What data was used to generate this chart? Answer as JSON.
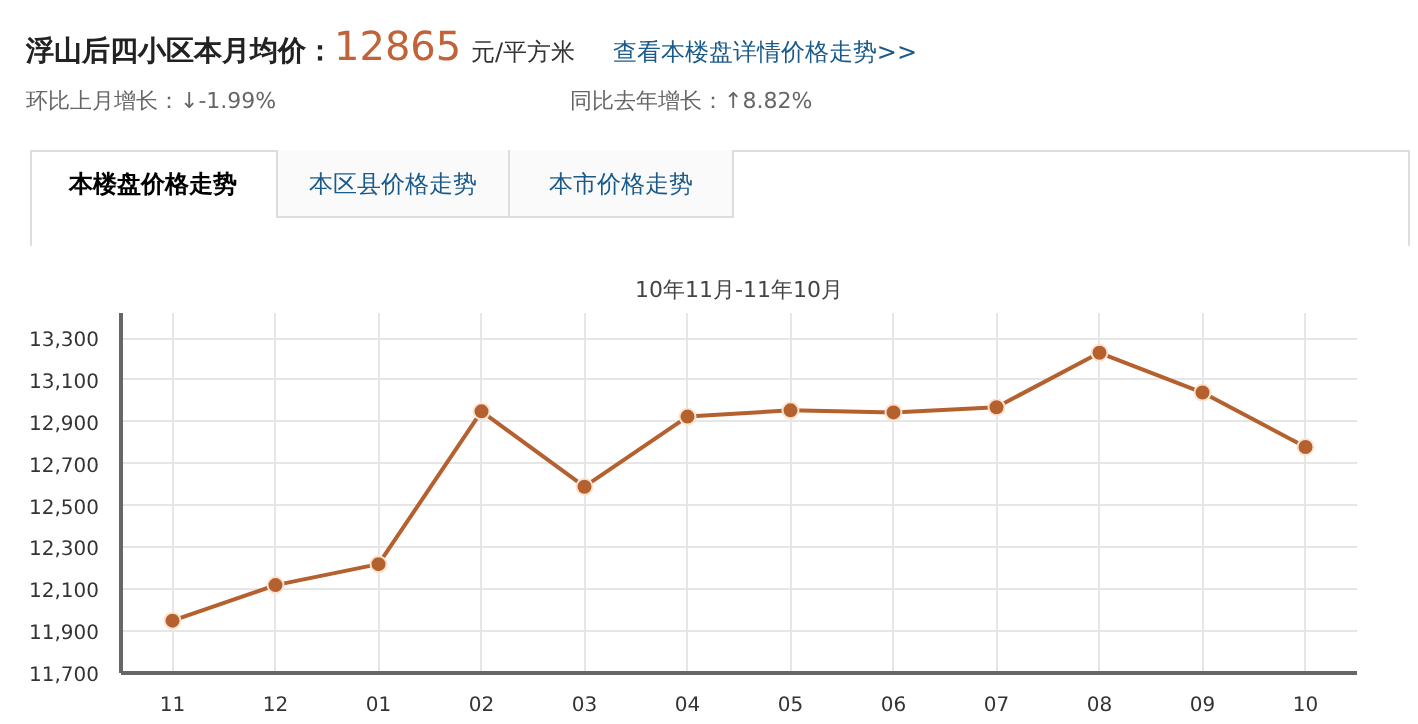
{
  "chart_data": {
    "type": "line",
    "title": "10年11月-11年10月",
    "annotations": [
      "浮山后四小区本月均价：",
      "12865",
      "元/平方米",
      "查看本楼盘详情价格走势>>",
      "环比上月增长：↓-1.99%",
      "同比去年增长：↑8.82%",
      "本楼盘价格走势",
      "本区县价格走势",
      "本市价格走势"
    ],
    "categories": [
      "11",
      "12",
      "01",
      "02",
      "03",
      "04",
      "05",
      "06",
      "07",
      "08",
      "09",
      "10"
    ],
    "series": [
      {
        "color": "#b5602f",
        "values": [
          11950,
          12120,
          12220,
          12950,
          12590,
          12925,
          12955,
          12945,
          12970,
          13230,
          13040,
          12780
        ]
      }
    ],
    "ylim": [
      11700,
      13420
    ],
    "yticks": [
      {
        "value": 11700,
        "label": "11,700"
      },
      {
        "value": 11900,
        "label": "11,900"
      },
      {
        "value": 12100,
        "label": "12,100"
      },
      {
        "value": 12300,
        "label": "12,300"
      },
      {
        "value": 12500,
        "label": "12,500"
      },
      {
        "value": 12700,
        "label": "12,700"
      },
      {
        "value": 12900,
        "label": "12,900"
      },
      {
        "value": 13100,
        "label": "13,100"
      },
      {
        "value": 13300,
        "label": "13,300"
      }
    ],
    "grid": true,
    "marker": "circle",
    "line_style": "solid"
  }
}
